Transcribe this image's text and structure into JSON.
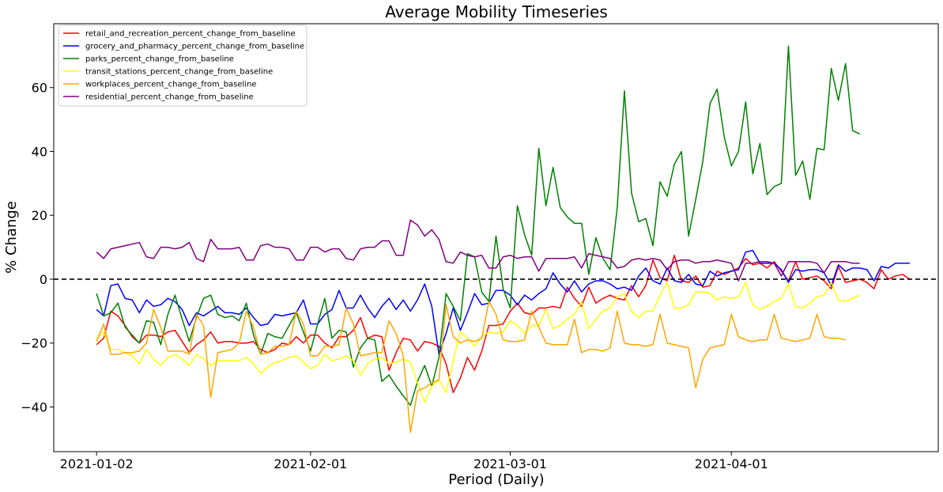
{
  "chart_data": {
    "type": "line",
    "title": "Average Mobility Timeseries",
    "xlabel": "Period (Daily)",
    "ylabel": "% Change",
    "x_start": "2021-01-02",
    "x_end": "2021-04-27",
    "xlim": [
      "2021-12-27",
      "2021-04-30"
    ],
    "ylim": [
      -54,
      80
    ],
    "x_ticks": [
      "2021-01-02",
      "2021-02-01",
      "2021-03-01",
      "2021-04-01"
    ],
    "y_ticks": [
      -40,
      -20,
      0,
      20,
      40,
      60
    ],
    "reference_line": {
      "y": 0,
      "style": "dashed",
      "color": "#000000"
    },
    "grid": false,
    "legend_position": "top-left",
    "series": [
      {
        "name": "retail_and_recreation_percent_change_from_baseline",
        "color": "#ff0000",
        "values": [
          -20.5,
          -18.5,
          -10,
          -11.5,
          -14.5,
          -18,
          -20,
          -17.5,
          -17.5,
          -18,
          -16.5,
          -16,
          -19.5,
          -23,
          -20.5,
          -19,
          -16.5,
          -20,
          -19.5,
          -19.5,
          -20,
          -20,
          -19.5,
          -22,
          -23,
          -22,
          -20,
          -20.5,
          -18,
          -20,
          -17.5,
          -17.5,
          -20,
          -21.5,
          -18,
          -18,
          -16,
          -12,
          -18.5,
          -17.5,
          -18,
          -28.5,
          -23,
          -18.5,
          -19,
          -22.5,
          -19.5,
          -20,
          -21,
          -26.5,
          -35.5,
          -31,
          -24.5,
          -28.5,
          -22.5,
          -14.5,
          -14.5,
          -14,
          -10,
          -7.5,
          -10.5,
          -11,
          -9,
          -9,
          -8.5,
          -9,
          -2.5,
          -6,
          -8.5,
          -2.5,
          -7.5,
          -6,
          -5,
          -6,
          -6.5,
          -2,
          -5.5,
          -2,
          6,
          0.5,
          -0.5,
          7.5,
          -0.5,
          -1,
          1,
          -2.5,
          -2,
          2.5,
          1.5,
          2.5,
          3.5,
          6.5,
          4.5,
          5,
          3.5,
          5.5,
          2.5,
          -0.5,
          5.5,
          0,
          0.5,
          1,
          -0.5,
          -3,
          4,
          -1,
          -0.5,
          0,
          -1,
          -3,
          3,
          0,
          1,
          1.5,
          0
        ]
      },
      {
        "name": "grocery_and_pharmacy_percent_change_from_baseline",
        "color": "#0000ff",
        "values": [
          -9.5,
          -11.5,
          -2,
          -1.5,
          -6,
          -6.5,
          -10.5,
          -6.5,
          -8.5,
          -8,
          -6,
          -7,
          -9.5,
          -14.5,
          -10.5,
          -11.5,
          -10,
          -8.5,
          -10.5,
          -10.5,
          -11,
          -9,
          -12,
          -14.5,
          -14,
          -11,
          -11.5,
          -11,
          -10.5,
          -6.5,
          -14,
          -14,
          -11,
          -9.5,
          -3.5,
          -9,
          -9,
          -5,
          -9,
          -12,
          -8.5,
          -6,
          -9.5,
          -6.5,
          -10,
          -6.5,
          -1.5,
          -8.5,
          -23.5,
          -17,
          -9,
          -16,
          -10.5,
          -4.5,
          -8,
          -7.5,
          -3.5,
          -3.5,
          -5,
          -8,
          -5,
          -6.5,
          -4.5,
          -3,
          2,
          -1.5,
          -4,
          -0.5,
          -4,
          -1.5,
          -0.5,
          -0.5,
          -1.5,
          -3,
          -2.5,
          -3.5,
          1,
          3.5,
          -0.5,
          -1.5,
          3.5,
          -0.5,
          -1,
          1.5,
          -1.5,
          -2,
          2.5,
          1,
          2,
          2.5,
          3,
          8.5,
          9,
          5,
          5,
          5,
          3,
          -1,
          3,
          2.5,
          3,
          3,
          2,
          -2,
          4.5,
          2.5,
          3.5,
          3.5,
          3,
          -0.5,
          4,
          3.5,
          5,
          5,
          5
        ]
      },
      {
        "name": "parks_percent_change_from_baseline",
        "color": "#008000",
        "values": [
          -4.5,
          -11.5,
          -10.5,
          -7.5,
          -15,
          -17.5,
          -20,
          -13,
          -13.5,
          -20.5,
          -11,
          -5,
          -12.5,
          -19.5,
          -12,
          -6,
          -5,
          -11,
          -12,
          -11.5,
          -13,
          -7.5,
          -17.5,
          -23.5,
          -17,
          -18,
          -18.5,
          -14.5,
          -10.5,
          -16.5,
          -22.5,
          -14,
          -6,
          -18.5,
          -16,
          -16.5,
          -27.5,
          -21.5,
          -18.5,
          -19,
          -32,
          -30,
          -33.5,
          -36.5,
          -39.5,
          -32,
          -27,
          -33.5,
          -24.5,
          -4.5,
          -8.5,
          -13,
          8,
          7,
          -4,
          -7,
          13.5,
          -3,
          -9,
          23,
          14,
          7.5,
          41,
          23,
          35,
          22.5,
          19.5,
          17.5,
          17.5,
          1.5,
          13,
          6.5,
          3,
          22.5,
          59,
          27,
          18,
          19,
          10.5,
          30.5,
          26,
          36,
          40,
          13.5,
          25,
          37,
          55,
          59.5,
          44.5,
          35.5,
          40,
          55.5,
          33,
          42.5,
          26.5,
          29,
          30,
          73,
          32.5,
          37,
          25,
          41,
          40.5,
          66,
          56,
          67.5,
          46.5,
          45.5
        ]
      },
      {
        "name": "transit_stations_percent_change_from_baseline",
        "color": "#ffff00",
        "values": [
          -18.5,
          -16.5,
          -22,
          -22,
          -23,
          -24,
          -26.5,
          -22,
          -25,
          -27,
          -24.5,
          -23.5,
          -25,
          -27,
          -23.5,
          -25,
          -27,
          -25.5,
          -25.5,
          -25.5,
          -25.5,
          -24.5,
          -26.5,
          -29.5,
          -27.5,
          -26,
          -25.5,
          -24.5,
          -24,
          -26,
          -28,
          -27,
          -23.5,
          -25.5,
          -25,
          -24,
          -25.5,
          -30,
          -26.5,
          -25,
          -24.5,
          -26.5,
          -26,
          -25,
          -26,
          -32.5,
          -38.5,
          -33.5,
          -31.5,
          -35.5,
          -25.5,
          -16.5,
          -18.5,
          -21,
          -18,
          -16.5,
          -17,
          -16.5,
          -13,
          -14.5,
          -17,
          -14.5,
          -14.5,
          -9.5,
          -15.5,
          -14.5,
          -12.5,
          -11,
          -7,
          -15.5,
          -12.5,
          -10,
          -9,
          -5.5,
          -4.5,
          -10,
          -12,
          -10,
          -10,
          -5,
          -1,
          -9,
          -9,
          -8,
          -4,
          -4,
          -4.5,
          -6.5,
          -5.5,
          -6,
          -5.5,
          -1,
          -8,
          -9.5,
          -8.5,
          -7,
          -6,
          -1.5,
          -8.5,
          -9,
          -7.5,
          -5.5,
          -5,
          -1,
          -6.5,
          -7,
          -6,
          -5
        ]
      },
      {
        "name": "workplaces_percent_change_from_baseline",
        "color": "#ffa500",
        "values": [
          -19.5,
          -14,
          -23.5,
          -23.5,
          -23,
          -23,
          -22.5,
          -20,
          -9.5,
          -15,
          -22.5,
          -22.5,
          -22.5,
          -23.5,
          -11,
          -14.5,
          -37,
          -23,
          -22.5,
          -22,
          -20,
          -10,
          -15,
          -23.5,
          -23,
          -21,
          -21,
          -20.5,
          -10,
          -14,
          -24,
          -24,
          -21,
          -21,
          -20.5,
          -9,
          -14,
          -24,
          -23.5,
          -23,
          -23,
          -13,
          -17,
          -24,
          -48,
          -35,
          -34,
          -32.5,
          -31.5,
          -8,
          -18,
          -20,
          -19,
          -19.5,
          -18.5,
          -7,
          -11,
          -19,
          -19.5,
          -19.5,
          -19,
          -10,
          -15,
          -20,
          -20.5,
          -20.5,
          -20.5,
          -12.5,
          -23,
          -22,
          -22,
          -22.5,
          -21.5,
          -10,
          -20,
          -20.5,
          -20.5,
          -21,
          -20.5,
          -11,
          -20,
          -20.5,
          -21,
          -21.5,
          -34,
          -25,
          -21.5,
          -21,
          -20.5,
          -11,
          -18,
          -19,
          -19.5,
          -19,
          -19,
          -11,
          -18.5,
          -19,
          -19.5,
          -19,
          -18.5,
          -11,
          -18,
          -18.5,
          -18.5,
          -19
        ]
      },
      {
        "name": "residential_percent_change_from_baseline",
        "color": "#800080",
        "values": [
          8.5,
          6.5,
          9.5,
          10,
          10.5,
          11,
          11.5,
          7,
          6.5,
          10,
          10,
          9.5,
          10,
          11.5,
          6.5,
          5.5,
          12.5,
          9.5,
          9.5,
          9.5,
          10,
          6,
          6,
          10.5,
          11,
          10,
          10,
          9.5,
          6,
          6,
          10,
          10,
          8.5,
          9.5,
          9.5,
          6.5,
          6,
          9.5,
          10,
          10,
          12,
          12,
          7.5,
          7.5,
          18.5,
          17,
          13.5,
          15.5,
          12.5,
          5.5,
          5,
          8.5,
          7.5,
          7,
          7.5,
          3.5,
          3.5,
          7,
          7.5,
          6.5,
          7,
          7,
          2.5,
          6.5,
          6.5,
          6.5,
          6.5,
          7,
          3.5,
          8,
          7.5,
          7,
          6.5,
          3.5,
          4,
          6,
          6.5,
          6,
          6.5,
          6,
          3,
          5.5,
          6,
          6,
          5,
          5.5,
          5.5,
          6,
          5.5,
          5,
          -0.5,
          5,
          5,
          5.5,
          5.5,
          5,
          1,
          5.5,
          5.5,
          5.5,
          5.5,
          5,
          2,
          5.5,
          5.5,
          5.5,
          5,
          5
        ]
      }
    ]
  }
}
